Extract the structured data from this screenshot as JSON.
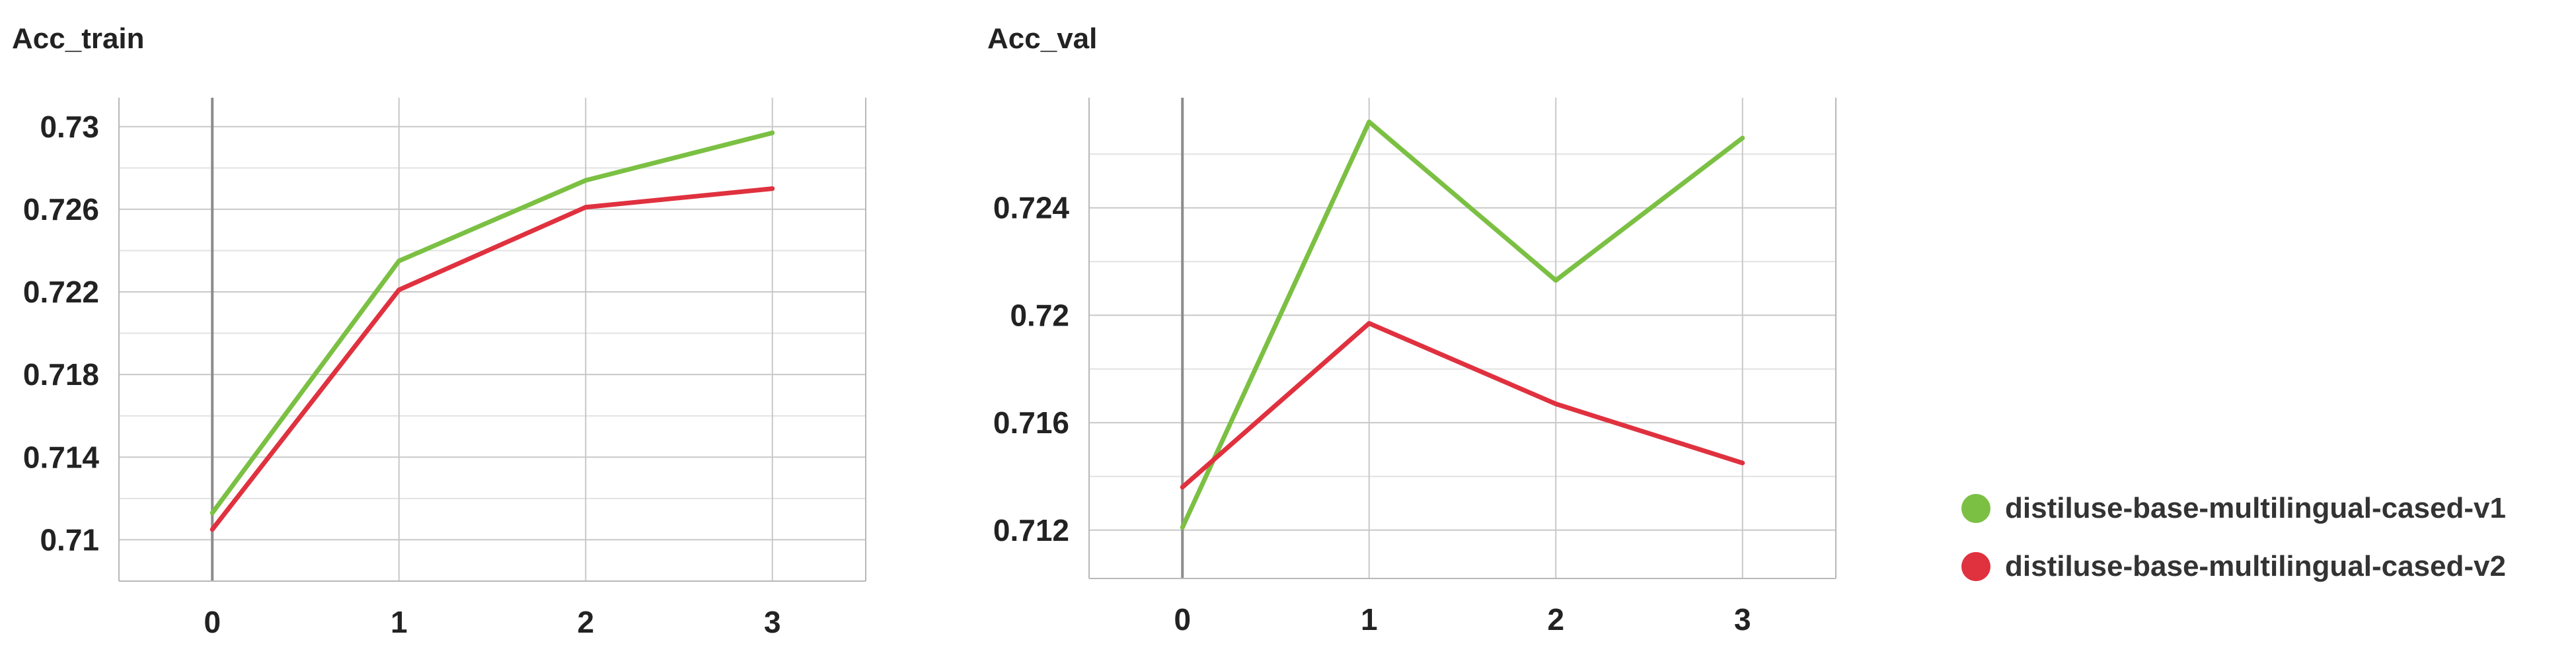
{
  "chart_data": [
    {
      "type": "line",
      "title": "Acc_train",
      "x": [
        0,
        1,
        2,
        3
      ],
      "xlim": [
        -0.5,
        3.5
      ],
      "ylim": [
        0.708,
        0.7314
      ],
      "yticks": [
        0.71,
        0.714,
        0.718,
        0.722,
        0.726,
        0.73
      ],
      "ytick_labels": [
        "0.71",
        "0.714",
        "0.718",
        "0.722",
        "0.726",
        "0.73"
      ],
      "xticks": [
        0,
        1,
        2,
        3
      ],
      "xtick_labels": [
        "0",
        "1",
        "2",
        "3"
      ],
      "grid": true,
      "series": [
        {
          "name": "distiluse-base-multilingual-cased-v1",
          "color": "#7bc043",
          "values": [
            0.7113,
            0.7235,
            0.7274,
            0.7297
          ]
        },
        {
          "name": "distiluse-base-multilingual-cased-v2",
          "color": "#e0313f",
          "values": [
            0.7105,
            0.7221,
            0.7261,
            0.727
          ]
        }
      ]
    },
    {
      "type": "line",
      "title": "Acc_val",
      "x": [
        0,
        1,
        2,
        3
      ],
      "xlim": [
        -0.5,
        3.5
      ],
      "ylim": [
        0.7102,
        0.7281
      ],
      "yticks": [
        0.712,
        0.716,
        0.72,
        0.724
      ],
      "ytick_labels": [
        "0.712",
        "0.716",
        "0.72",
        "0.724"
      ],
      "xticks": [
        0,
        1,
        2,
        3
      ],
      "xtick_labels": [
        "0",
        "1",
        "2",
        "3"
      ],
      "grid": true,
      "series": [
        {
          "name": "distiluse-base-multilingual-cased-v1",
          "color": "#7bc043",
          "values": [
            0.7121,
            0.7272,
            0.7213,
            0.7266
          ]
        },
        {
          "name": "distiluse-base-multilingual-cased-v2",
          "color": "#e0313f",
          "values": [
            0.7136,
            0.7197,
            0.7167,
            0.7145
          ]
        }
      ]
    }
  ],
  "legend": {
    "position": "bottom-right",
    "items": [
      {
        "label": "distiluse-base-multilingual-cased-v1",
        "color": "#7bc043"
      },
      {
        "label": "distiluse-base-multilingual-cased-v2",
        "color": "#e0313f"
      }
    ]
  }
}
